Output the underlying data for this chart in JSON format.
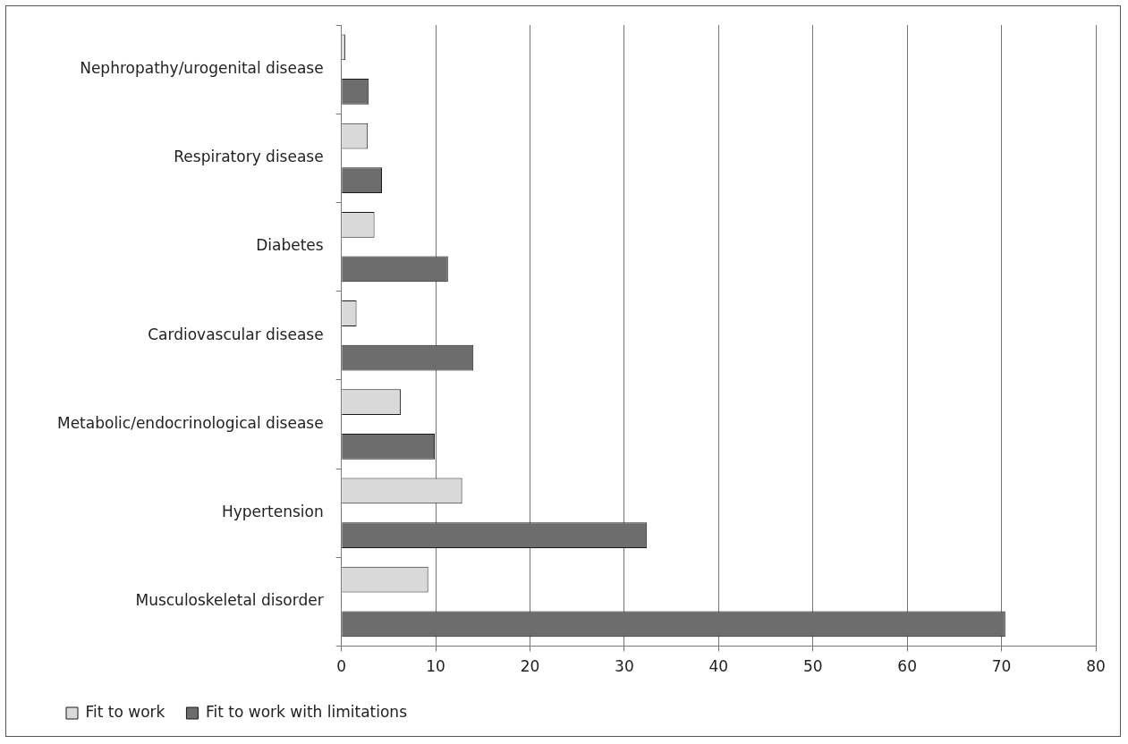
{
  "chart_data": {
    "type": "bar",
    "orientation": "horizontal",
    "categories": [
      "Nephropathy/urogenital disease",
      "Respiratory disease",
      "Diabetes",
      "Cardiovascular disease",
      "Metabolic/endocrinological disease",
      "Hypertension",
      "Musculoskeletal disorder"
    ],
    "series": [
      {
        "name": "Fit to work",
        "color": "#d9d9d9",
        "values": [
          0.4,
          2.8,
          3.5,
          1.6,
          6.3,
          12.8,
          9.2
        ]
      },
      {
        "name": "Fit to work with limitations",
        "color": "#6d6d6d",
        "values": [
          2.9,
          4.3,
          11.3,
          14.0,
          9.9,
          32.4,
          70.4
        ]
      }
    ],
    "xlim": [
      0,
      80
    ],
    "xticks": [
      0,
      10,
      20,
      30,
      40,
      50,
      60,
      70,
      80
    ],
    "grid": "x",
    "legend": "bottom"
  }
}
